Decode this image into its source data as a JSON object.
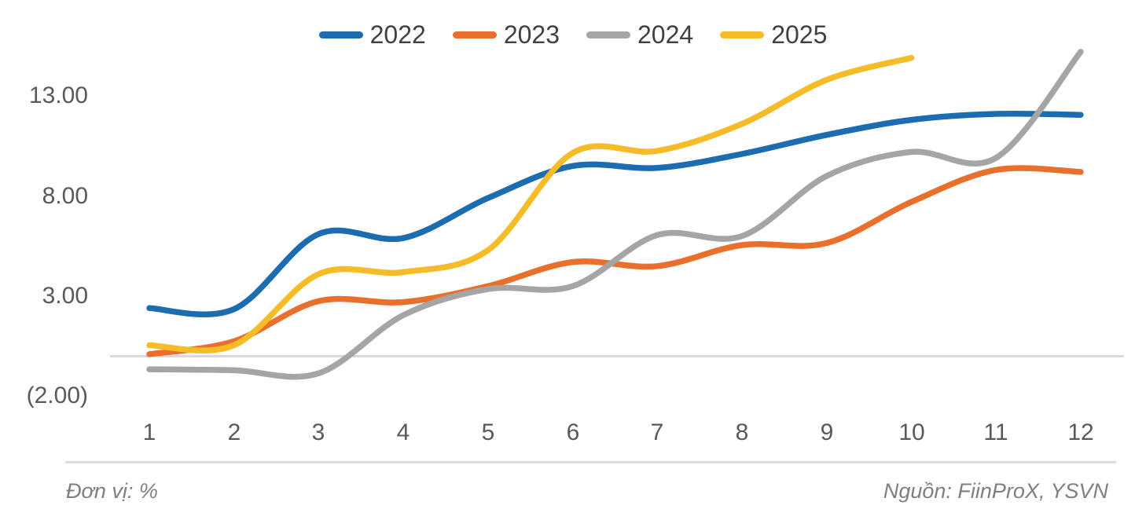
{
  "chart_data": {
    "type": "line",
    "title": "",
    "xlabel": "",
    "ylabel": "",
    "x": [
      1,
      2,
      3,
      4,
      5,
      6,
      7,
      8,
      9,
      10,
      11,
      12
    ],
    "x_labels": [
      "1",
      "2",
      "3",
      "4",
      "5",
      "6",
      "7",
      "8",
      "9",
      "10",
      "11",
      "12"
    ],
    "y_ticks": [
      "13.00",
      "8.00",
      "3.00",
      "(2.00)"
    ],
    "y_tick_values": [
      13,
      8,
      3,
      -2
    ],
    "ylim": [
      -2,
      15.6
    ],
    "grid": "horizontal zero line only",
    "legend_position": "top-center",
    "zero_line_color": "#D9D9D9",
    "series": [
      {
        "name": "2022",
        "color": "#1B6CB0",
        "values": [
          2.4,
          2.35,
          6.1,
          5.9,
          7.9,
          9.5,
          9.4,
          10.1,
          11.05,
          11.8,
          12.1,
          12.05
        ]
      },
      {
        "name": "2023",
        "color": "#E8702C",
        "values": [
          0.1,
          0.75,
          2.75,
          2.7,
          3.5,
          4.7,
          4.5,
          5.55,
          5.65,
          7.7,
          9.3,
          9.2
        ]
      },
      {
        "name": "2024",
        "color": "#A5A5A5",
        "values": [
          -0.65,
          -0.7,
          -0.85,
          2.05,
          3.35,
          3.5,
          6.05,
          6.0,
          9.0,
          10.2,
          9.9,
          15.2
        ]
      },
      {
        "name": "2025",
        "color": "#F5BC28",
        "values": [
          0.55,
          0.55,
          4.1,
          4.2,
          5.3,
          10.15,
          10.25,
          11.6,
          13.8,
          14.9
        ]
      }
    ]
  },
  "footer": {
    "unit": "Đơn vị: %",
    "source": "Nguồn: FiinProX, YSVN"
  }
}
